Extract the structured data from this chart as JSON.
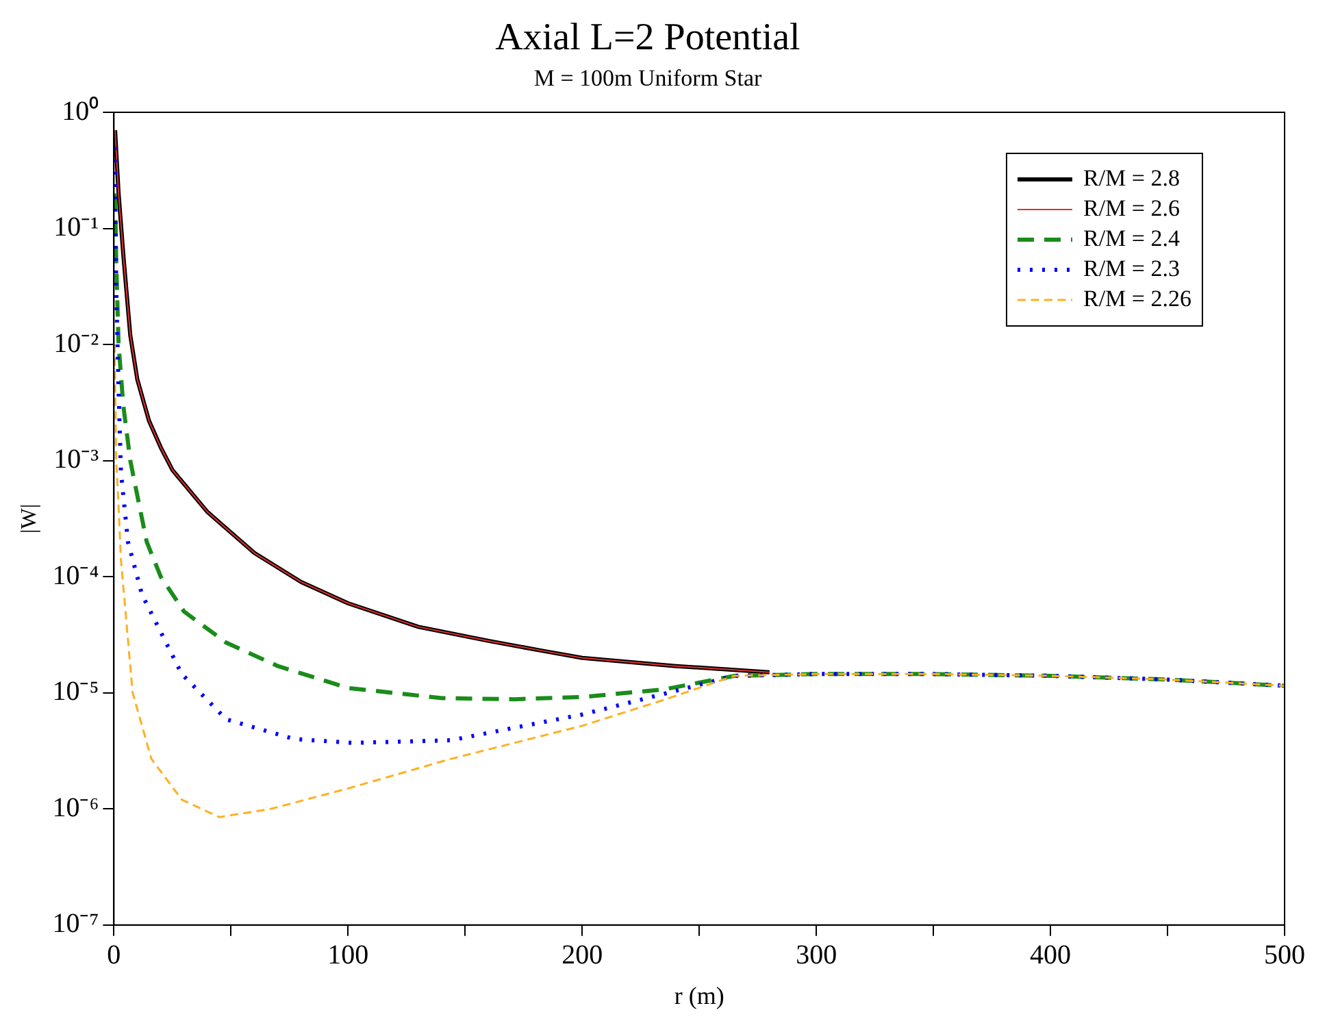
{
  "chart_data": {
    "type": "line",
    "title": "Axial L=2 Potential",
    "subtitle": "M = 100m Uniform Star",
    "xlabel": "r (m)",
    "ylabel": "|W|",
    "log": "y",
    "legend": "top right",
    "grid": false,
    "marker": "none",
    "xlim": [
      0,
      500
    ],
    "xticks": [
      0,
      {
        "value": 50,
        "label": null
      },
      100,
      {
        "value": 150,
        "label": null
      },
      200,
      {
        "value": 250,
        "label": null
      },
      300,
      {
        "value": 350,
        "label": null
      },
      400,
      {
        "value": 450,
        "label": null
      },
      500
    ],
    "ylim": [
      1e-07,
      1
    ],
    "yticks": [
      {
        "value": 1,
        "label": "10⁰"
      },
      {
        "value": 0.1,
        "label": "10⁻¹"
      },
      {
        "value": 0.01,
        "label": "10⁻²"
      },
      {
        "value": 0.001,
        "label": "10⁻³"
      },
      {
        "value": 0.0001,
        "label": "10⁻⁴"
      },
      {
        "value": 1e-05,
        "label": "10⁻⁵"
      },
      {
        "value": 1e-06,
        "label": "10⁻⁶"
      },
      {
        "value": 1e-07,
        "label": "10⁻⁷"
      }
    ],
    "series": [
      {
        "name": "R/M = 2.8",
        "color": "#000000",
        "line_style": "solid",
        "x": [
          0.5,
          2,
          4,
          7,
          10,
          15,
          20,
          25,
          40,
          60,
          80,
          100,
          130,
          160,
          183,
          200,
          240,
          280
        ],
        "values": [
          0.7,
          0.2,
          0.06,
          0.012,
          0.005,
          0.0022,
          0.0013,
          0.00083,
          0.00036,
          0.00016,
          9e-05,
          5.9e-05,
          3.7e-05,
          2.8e-05,
          2.3e-05,
          2e-05,
          1.7e-05,
          1.5e-05
        ]
      },
      {
        "name": "R/M = 2.6",
        "color": "#e03030",
        "line_style": "solid",
        "x": [
          0.5,
          2,
          4,
          7,
          10,
          15,
          20,
          25,
          40,
          60,
          80,
          100,
          130,
          160,
          183,
          200,
          240,
          280
        ],
        "values": [
          0.7,
          0.2,
          0.06,
          0.012,
          0.005,
          0.0022,
          0.0013,
          0.00083,
          0.00036,
          0.00016,
          9e-05,
          5.9e-05,
          3.7e-05,
          2.8e-05,
          2.3e-05,
          2e-05,
          1.7e-05,
          1.5e-05
        ]
      },
      {
        "name": "R/M = 2.4",
        "color": "#1a8c1a",
        "line_style": "dashed",
        "x": [
          0.5,
          1,
          2,
          4,
          7,
          10,
          14,
          20,
          30,
          48,
          70,
          100,
          140,
          171,
          200,
          235,
          265,
          300,
          350,
          400,
          450,
          500
        ],
        "values": [
          0.2,
          0.05,
          0.01,
          0.003,
          0.001,
          0.0005,
          0.0002,
          0.0001,
          5e-05,
          2.7e-05,
          1.7e-05,
          1.1e-05,
          9e-06,
          8.8e-06,
          9.2e-06,
          1.07e-05,
          1.4e-05,
          1.45e-05,
          1.45e-05,
          1.4e-05,
          1.3e-05,
          1.15e-05
        ]
      },
      {
        "name": "R/M = 2.3",
        "color": "#0000ff",
        "line_style": "dotted",
        "x": [
          0.3,
          1,
          2,
          3,
          6,
          12,
          29,
          48,
          77,
          102,
          144,
          171,
          200,
          235,
          265,
          300,
          350,
          400,
          450,
          500
        ],
        "values": [
          0.5,
          0.03,
          0.004,
          0.0008,
          0.0002,
          7e-05,
          1.45e-05,
          5.9e-06,
          4e-06,
          3.7e-06,
          3.9e-06,
          5e-06,
          6.5e-06,
          9.8e-06,
          1.4e-05,
          1.45e-05,
          1.45e-05,
          1.4e-05,
          1.3e-05,
          1.15e-05
        ]
      },
      {
        "name": "R/M = 2.26",
        "color": "#ffb020",
        "line_style": "dashed",
        "x": [
          0.3,
          1,
          2,
          3,
          8,
          16,
          29,
          45,
          67,
          100,
          144,
          171,
          200,
          235,
          265,
          300,
          350,
          400,
          450,
          500
        ],
        "values": [
          0.01,
          0.001,
          0.0004,
          0.00014,
          1e-05,
          2.7e-06,
          1.2e-06,
          8.5e-07,
          1e-06,
          1.5e-06,
          2.7e-06,
          3.7e-06,
          5.2e-06,
          8.7e-06,
          1.4e-05,
          1.45e-05,
          1.45e-05,
          1.4e-05,
          1.3e-05,
          1.15e-05
        ]
      }
    ]
  }
}
